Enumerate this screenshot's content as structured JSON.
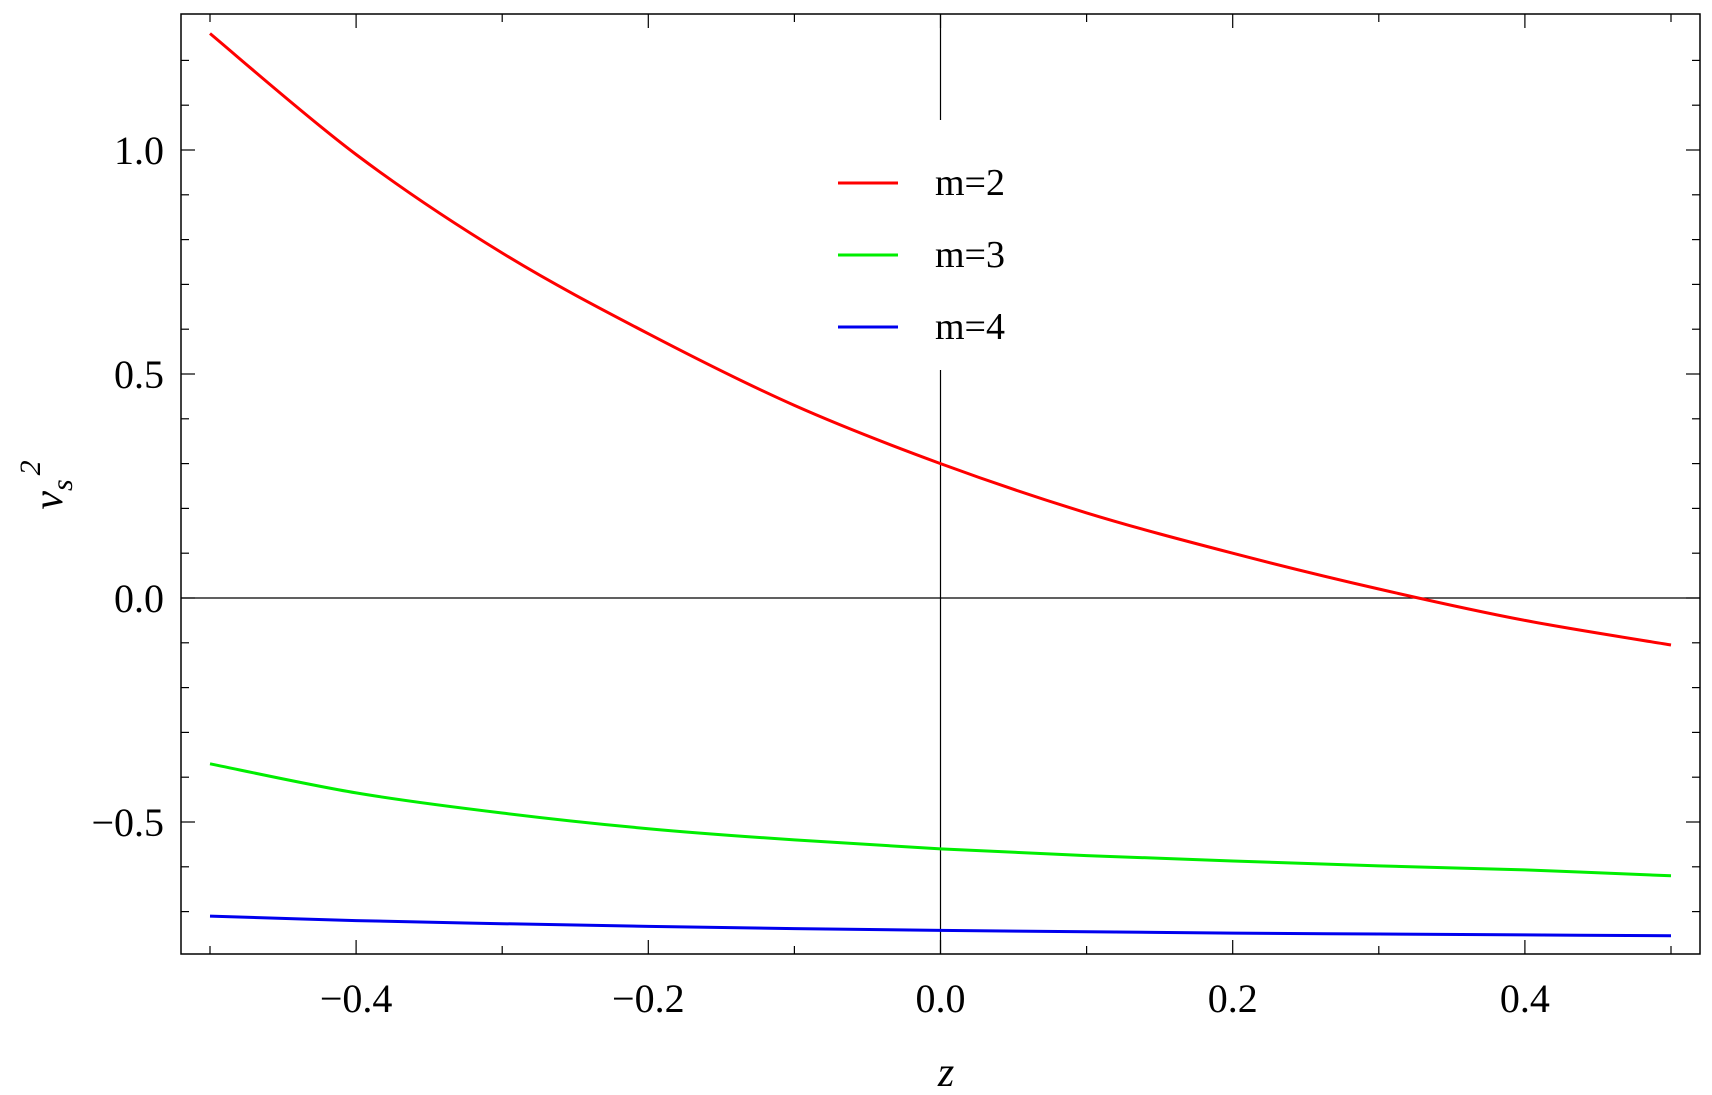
{
  "chart_data": {
    "type": "line",
    "title": "",
    "xlabel": "z",
    "ylabel": {
      "base": "v",
      "sub": "s",
      "sup": "2"
    },
    "xlim": [
      -0.5,
      0.5
    ],
    "ylim": [
      -0.79,
      1.3
    ],
    "x_ticks": [
      -0.4,
      -0.2,
      0.0,
      0.2,
      0.4
    ],
    "x_tick_labels": [
      "−0.4",
      "−0.2",
      "0.0",
      "0.2",
      "0.4"
    ],
    "y_ticks": [
      -0.5,
      0.0,
      0.5,
      1.0
    ],
    "y_tick_labels": [
      "−0.5",
      "0.0",
      "0.5",
      "1.0"
    ],
    "grid": false,
    "legend_position": "top-center",
    "x": [
      -0.5,
      -0.4,
      -0.3,
      -0.2,
      -0.1,
      0.0,
      0.1,
      0.2,
      0.3,
      0.4,
      0.5
    ],
    "series": [
      {
        "name": "m=2",
        "color": "#ff0000",
        "values": [
          1.26,
          0.99,
          0.77,
          0.59,
          0.43,
          0.3,
          0.19,
          0.1,
          0.02,
          -0.05,
          -0.105
        ]
      },
      {
        "name": "m=3",
        "color": "#00ee00",
        "values": [
          -0.37,
          -0.435,
          -0.48,
          -0.515,
          -0.54,
          -0.56,
          -0.575,
          -0.587,
          -0.598,
          -0.607,
          -0.62
        ]
      },
      {
        "name": "m=4",
        "color": "#0000ee",
        "values": [
          -0.71,
          -0.72,
          -0.727,
          -0.733,
          -0.738,
          -0.742,
          -0.745,
          -0.748,
          -0.75,
          -0.752,
          -0.754
        ]
      }
    ]
  }
}
